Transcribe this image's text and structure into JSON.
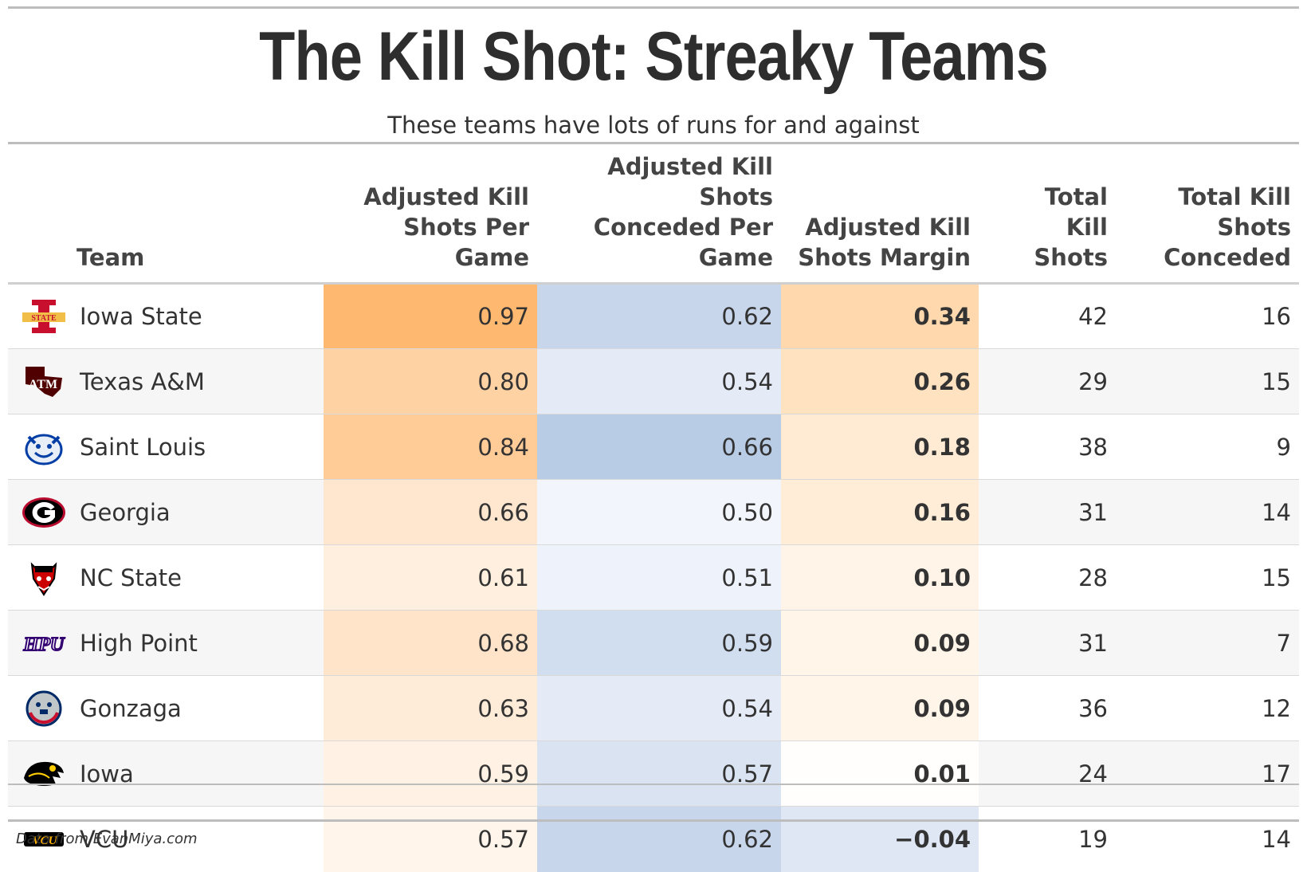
{
  "chart_data": {
    "type": "table",
    "title": "The Kill Shot: Streaky Teams",
    "subtitle": "These teams have lots of runs for and against",
    "source": "Data from EvanMiya.com",
    "columns": [
      "Team",
      "Adjusted Kill Shots Per Game",
      "Adjusted Kill Shots Conceded Per Game",
      "Adjusted Kill Shots Margin",
      "Total Kill Shots",
      "Total Kill Shots Conceded"
    ],
    "header_lines": {
      "team": "Team",
      "adj_per_game": [
        "Adjusted Kill",
        "Shots Per Game"
      ],
      "adj_conceded": [
        "Adjusted Kill Shots",
        "Conceded Per Game"
      ],
      "adj_margin": [
        "Adjusted Kill",
        "Shots Margin"
      ],
      "total": [
        "Total",
        "Kill Shots"
      ],
      "total_conceded": [
        "Total Kill Shots",
        "Conceded"
      ]
    },
    "rows": [
      {
        "team": "Iowa State",
        "logo": "iowa-state-logo",
        "adj_per_game": "0.97",
        "adj_conceded": "0.62",
        "adj_margin": "0.34",
        "total": "42",
        "total_conceded": "16"
      },
      {
        "team": "Texas A&M",
        "logo": "texas-am-logo",
        "adj_per_game": "0.80",
        "adj_conceded": "0.54",
        "adj_margin": "0.26",
        "total": "29",
        "total_conceded": "15"
      },
      {
        "team": "Saint Louis",
        "logo": "saint-louis-logo",
        "adj_per_game": "0.84",
        "adj_conceded": "0.66",
        "adj_margin": "0.18",
        "total": "38",
        "total_conceded": "9"
      },
      {
        "team": "Georgia",
        "logo": "georgia-logo",
        "adj_per_game": "0.66",
        "adj_conceded": "0.50",
        "adj_margin": "0.16",
        "total": "31",
        "total_conceded": "14"
      },
      {
        "team": "NC State",
        "logo": "nc-state-logo",
        "adj_per_game": "0.61",
        "adj_conceded": "0.51",
        "adj_margin": "0.10",
        "total": "28",
        "total_conceded": "15"
      },
      {
        "team": "High Point",
        "logo": "high-point-logo",
        "adj_per_game": "0.68",
        "adj_conceded": "0.59",
        "adj_margin": "0.09",
        "total": "31",
        "total_conceded": "7"
      },
      {
        "team": "Gonzaga",
        "logo": "gonzaga-logo",
        "adj_per_game": "0.63",
        "adj_conceded": "0.54",
        "adj_margin": "0.09",
        "total": "36",
        "total_conceded": "12"
      },
      {
        "team": "Iowa",
        "logo": "iowa-logo",
        "adj_per_game": "0.59",
        "adj_conceded": "0.57",
        "adj_margin": "0.01",
        "total": "24",
        "total_conceded": "17"
      },
      {
        "team": "VCU",
        "logo": "vcu-logo",
        "adj_per_game": "0.57",
        "adj_conceded": "0.62",
        "adj_margin": "−0.04",
        "total": "19",
        "total_conceded": "14"
      }
    ],
    "colors": {
      "orange_high": "#ffb870",
      "blue_high": "#b8cce6",
      "neutral": "#ffffff"
    }
  }
}
